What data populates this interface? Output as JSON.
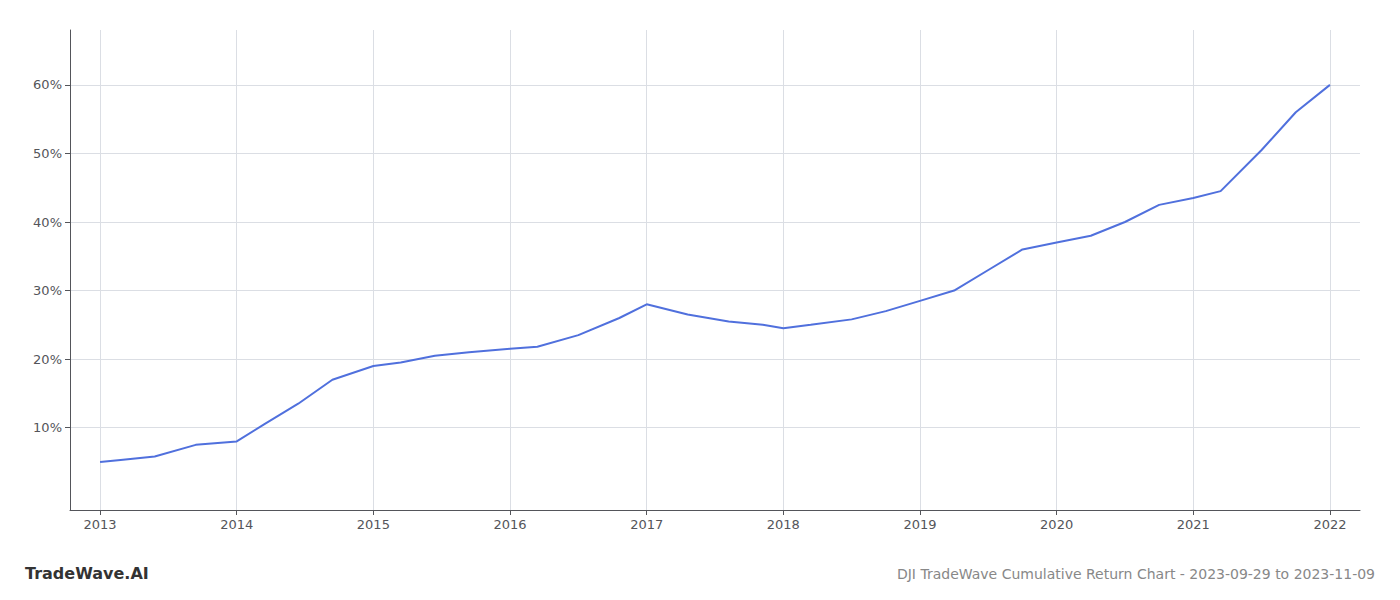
{
  "chart_data": {
    "type": "line",
    "title": "DJI TradeWave Cumulative Return Chart - 2023-09-29 to 2023-11-09",
    "annotations": [
      "TradeWave.AI"
    ],
    "x": [
      2013.0,
      2013.15,
      2013.4,
      2013.7,
      2014.0,
      2014.2,
      2014.45,
      2014.7,
      2015.0,
      2015.2,
      2015.45,
      2015.7,
      2016.0,
      2016.2,
      2016.5,
      2016.8,
      2017.0,
      2017.3,
      2017.6,
      2017.85,
      2018.0,
      2018.2,
      2018.5,
      2018.75,
      2019.0,
      2019.25,
      2019.5,
      2019.75,
      2020.0,
      2020.25,
      2020.5,
      2020.75,
      2021.0,
      2021.2,
      2021.5,
      2021.75,
      2022.0
    ],
    "values": [
      5.0,
      5.3,
      5.8,
      7.5,
      8.0,
      10.5,
      13.5,
      17.0,
      19.0,
      19.5,
      20.5,
      21.0,
      21.5,
      21.8,
      23.5,
      26.0,
      28.0,
      26.5,
      25.5,
      25.0,
      24.5,
      25.0,
      25.8,
      27.0,
      28.5,
      30.0,
      33.0,
      36.0,
      37.0,
      38.0,
      40.0,
      42.5,
      43.5,
      44.5,
      50.5,
      56.0,
      60.0
    ],
    "xlim": [
      2012.78,
      2022.22
    ],
    "xticks": [
      2013,
      2014,
      2015,
      2016,
      2017,
      2018,
      2019,
      2020,
      2021,
      2022
    ],
    "ylim": [
      -2,
      68
    ],
    "yticks": [
      {
        "value": 10,
        "label": "10%"
      },
      {
        "value": 20,
        "label": "20%"
      },
      {
        "value": 30,
        "label": "30%"
      },
      {
        "value": 40,
        "label": "40%"
      },
      {
        "value": 50,
        "label": "50%"
      },
      {
        "value": 60,
        "label": "60%"
      }
    ],
    "grid": true
  }
}
